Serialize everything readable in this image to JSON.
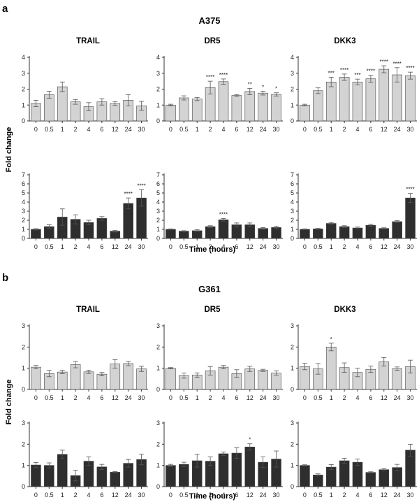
{
  "figure": {
    "xlabel": "Time (hours)",
    "ylabel": "Fold change",
    "colors": {
      "light_bar": "#d3d3d3",
      "dark_bar": "#2e2e2e",
      "axis": "#333333"
    }
  },
  "panels": [
    {
      "letter": "a",
      "cell_line": "A375",
      "genes": [
        "TRAIL",
        "DR5",
        "DKK3"
      ]
    },
    {
      "letter": "b",
      "cell_line": "G361",
      "genes": [
        "TRAIL",
        "DR5",
        "DKK3"
      ]
    }
  ],
  "chart_data": [
    {
      "type": "bar",
      "panel": "a",
      "cell_line": "A375",
      "gene": "TRAIL",
      "row": "top",
      "color": "light",
      "categories": [
        "0",
        "0.5",
        "1",
        "2",
        "4",
        "6",
        "12",
        "24",
        "30"
      ],
      "values": [
        1.1,
        1.65,
        2.15,
        1.2,
        0.9,
        1.2,
        1.1,
        1.3,
        0.95
      ],
      "errors": [
        0.2,
        0.22,
        0.3,
        0.15,
        0.25,
        0.2,
        0.12,
        0.35,
        0.28
      ],
      "significance": [
        "",
        "",
        "",
        "",
        "",
        "",
        "",
        "",
        ""
      ],
      "yticks": [
        0,
        1,
        2,
        3,
        4
      ],
      "ylim": [
        0,
        4
      ]
    },
    {
      "type": "bar",
      "panel": "a",
      "cell_line": "A375",
      "gene": "DR5",
      "row": "top",
      "color": "light",
      "categories": [
        "0",
        "0.5",
        "1",
        "2",
        "4",
        "6",
        "12",
        "24",
        "30"
      ],
      "values": [
        1.0,
        1.45,
        1.38,
        2.1,
        2.47,
        1.6,
        1.85,
        1.75,
        1.67
      ],
      "errors": [
        0.05,
        0.13,
        0.1,
        0.4,
        0.17,
        0.05,
        0.2,
        0.12,
        0.1
      ],
      "significance": [
        "",
        "",
        "",
        "****",
        "****",
        "",
        "**",
        "*",
        "*"
      ],
      "yticks": [
        0,
        1,
        2,
        3,
        4
      ],
      "ylim": [
        0,
        4
      ]
    },
    {
      "type": "bar",
      "panel": "a",
      "cell_line": "A375",
      "gene": "DKK3",
      "row": "top",
      "color": "light",
      "categories": [
        "0",
        "0.5",
        "1",
        "2",
        "4",
        "6",
        "12",
        "24",
        "30"
      ],
      "values": [
        1.0,
        1.9,
        2.45,
        2.75,
        2.45,
        2.65,
        3.25,
        2.9,
        2.85
      ],
      "errors": [
        0.05,
        0.18,
        0.3,
        0.2,
        0.18,
        0.22,
        0.22,
        0.45,
        0.22
      ],
      "significance": [
        "",
        "",
        "***",
        "****",
        "***",
        "****",
        "****",
        "****",
        "****"
      ],
      "yticks": [
        0,
        1,
        2,
        3,
        4
      ],
      "ylim": [
        0,
        4
      ]
    },
    {
      "type": "bar",
      "panel": "a",
      "cell_line": "A375",
      "gene": "TRAIL",
      "row": "bottom",
      "color": "dark",
      "categories": [
        "0",
        "0.5",
        "1",
        "2",
        "4",
        "6",
        "12",
        "24",
        "30"
      ],
      "values": [
        1.0,
        1.3,
        2.35,
        2.1,
        1.75,
        2.2,
        0.8,
        3.85,
        4.45
      ],
      "errors": [
        0.07,
        0.2,
        0.9,
        0.5,
        0.25,
        0.2,
        0.1,
        0.6,
        0.9
      ],
      "significance": [
        "",
        "",
        "",
        "",
        "",
        "",
        "",
        "****",
        "****"
      ],
      "yticks": [
        0,
        1,
        2,
        3,
        4,
        5,
        6,
        7
      ],
      "ylim": [
        0,
        7
      ]
    },
    {
      "type": "bar",
      "panel": "a",
      "cell_line": "A375",
      "gene": "DR5",
      "row": "bottom",
      "color": "dark",
      "categories": [
        "0",
        "0.5",
        "1",
        "2",
        "4",
        "6",
        "12",
        "24",
        "30"
      ],
      "values": [
        1.0,
        0.8,
        0.85,
        1.3,
        2.05,
        1.5,
        1.5,
        1.1,
        1.2
      ],
      "errors": [
        0.05,
        0.05,
        0.1,
        0.1,
        0.15,
        0.2,
        0.2,
        0.1,
        0.15
      ],
      "significance": [
        "",
        "",
        "",
        "",
        "****",
        "",
        "",
        "",
        ""
      ],
      "yticks": [
        0,
        1,
        2,
        3,
        4,
        5,
        6,
        7
      ],
      "ylim": [
        0,
        7
      ]
    },
    {
      "type": "bar",
      "panel": "a",
      "cell_line": "A375",
      "gene": "DKK3",
      "row": "bottom",
      "color": "dark",
      "categories": [
        "0",
        "0.5",
        "1",
        "2",
        "4",
        "6",
        "12",
        "24",
        "30"
      ],
      "values": [
        1.0,
        1.05,
        1.65,
        1.3,
        1.15,
        1.45,
        1.1,
        1.85,
        4.45
      ],
      "errors": [
        0.05,
        0.05,
        0.1,
        0.1,
        0.1,
        0.1,
        0.07,
        0.1,
        0.5
      ],
      "significance": [
        "",
        "",
        "",
        "",
        "",
        "",
        "",
        "",
        "****"
      ],
      "yticks": [
        0,
        1,
        2,
        3,
        4,
        5,
        6,
        7
      ],
      "ylim": [
        0,
        7
      ]
    },
    {
      "type": "bar",
      "panel": "b",
      "cell_line": "G361",
      "gene": "TRAIL",
      "row": "top",
      "color": "light",
      "categories": [
        "0",
        "0.5",
        "1",
        "2",
        "4",
        "6",
        "12",
        "24",
        "30"
      ],
      "values": [
        1.05,
        0.75,
        0.82,
        1.17,
        0.83,
        0.72,
        1.2,
        1.22,
        0.97
      ],
      "errors": [
        0.08,
        0.15,
        0.08,
        0.15,
        0.08,
        0.08,
        0.2,
        0.1,
        0.12
      ],
      "significance": [
        "",
        "",
        "",
        "",
        "",
        "",
        "",
        "",
        ""
      ],
      "yticks": [
        0,
        1,
        2,
        3
      ],
      "ylim": [
        0,
        3
      ]
    },
    {
      "type": "bar",
      "panel": "b",
      "cell_line": "G361",
      "gene": "DR5",
      "row": "top",
      "color": "light",
      "categories": [
        "0",
        "0.5",
        "1",
        "2",
        "4",
        "6",
        "12",
        "24",
        "30"
      ],
      "values": [
        1.0,
        0.65,
        0.68,
        0.88,
        1.05,
        0.75,
        0.97,
        0.9,
        0.77
      ],
      "errors": [
        0.03,
        0.12,
        0.1,
        0.2,
        0.08,
        0.18,
        0.12,
        0.05,
        0.1
      ],
      "significance": [
        "",
        "",
        "",
        "",
        "",
        "",
        "",
        "",
        ""
      ],
      "yticks": [
        0,
        1,
        2,
        3
      ],
      "ylim": [
        0,
        3
      ]
    },
    {
      "type": "bar",
      "panel": "b",
      "cell_line": "G361",
      "gene": "DKK3",
      "row": "top",
      "color": "light",
      "categories": [
        "0",
        "0.5",
        "1",
        "2",
        "4",
        "6",
        "12",
        "24",
        "30"
      ],
      "values": [
        1.08,
        0.97,
        2.0,
        1.03,
        0.8,
        0.95,
        1.3,
        0.98,
        1.08
      ],
      "errors": [
        0.15,
        0.25,
        0.18,
        0.22,
        0.2,
        0.15,
        0.2,
        0.08,
        0.3
      ],
      "significance": [
        "",
        "",
        "*",
        "",
        "",
        "",
        "",
        "",
        ""
      ],
      "yticks": [
        0,
        1,
        2,
        3
      ],
      "ylim": [
        0,
        3
      ]
    },
    {
      "type": "bar",
      "panel": "b",
      "cell_line": "G361",
      "gene": "TRAIL",
      "row": "bottom",
      "color": "dark",
      "categories": [
        "0",
        "0.5",
        "1",
        "2",
        "4",
        "6",
        "12",
        "24",
        "30"
      ],
      "values": [
        1.02,
        1.0,
        1.52,
        0.52,
        1.2,
        0.93,
        0.68,
        1.1,
        1.28
      ],
      "errors": [
        0.12,
        0.12,
        0.2,
        0.25,
        0.2,
        0.12,
        0.03,
        0.18,
        0.25
      ],
      "significance": [
        "",
        "",
        "",
        "",
        "",
        "",
        "",
        "",
        ""
      ],
      "yticks": [
        0,
        1,
        2,
        3
      ],
      "ylim": [
        0,
        3
      ]
    },
    {
      "type": "bar",
      "panel": "b",
      "cell_line": "G361",
      "gene": "DR5",
      "row": "bottom",
      "color": "dark",
      "categories": [
        "0",
        "0.5",
        "1",
        "2",
        "4",
        "6",
        "12",
        "24",
        "30"
      ],
      "values": [
        1.0,
        1.05,
        1.22,
        1.2,
        1.55,
        1.58,
        1.87,
        1.15,
        1.3
      ],
      "errors": [
        0.05,
        0.1,
        0.3,
        0.2,
        0.08,
        0.25,
        0.15,
        0.25,
        0.38
      ],
      "significance": [
        "",
        "",
        "",
        "",
        "",
        "",
        "*",
        "",
        ""
      ],
      "yticks": [
        0,
        1,
        2,
        3
      ],
      "ylim": [
        0,
        3
      ]
    },
    {
      "type": "bar",
      "panel": "b",
      "cell_line": "G361",
      "gene": "DKK3",
      "row": "bottom",
      "color": "dark",
      "categories": [
        "0",
        "0.5",
        "1",
        "2",
        "4",
        "6",
        "12",
        "24",
        "30"
      ],
      "values": [
        1.0,
        0.55,
        0.92,
        1.22,
        1.15,
        0.67,
        0.8,
        0.9,
        1.72
      ],
      "errors": [
        0.03,
        0.05,
        0.12,
        0.12,
        0.15,
        0.03,
        0.05,
        0.15,
        0.28
      ],
      "significance": [
        "",
        "",
        "",
        "",
        "",
        "",
        "",
        "",
        ""
      ],
      "yticks": [
        0,
        1,
        2,
        3
      ],
      "ylim": [
        0,
        3
      ]
    }
  ]
}
